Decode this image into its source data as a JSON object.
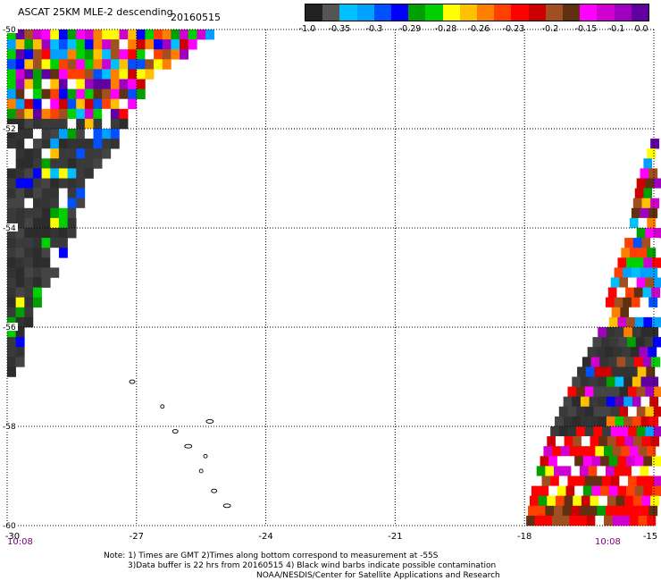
{
  "title": {
    "text": "ASCAT 25KM MLE-2 descending",
    "date": "20160515"
  },
  "colorbar": {
    "colors": [
      "#222222",
      "#555555",
      "#00bfff",
      "#00a0ff",
      "#0050ff",
      "#0000ff",
      "#00a000",
      "#00d000",
      "#ffff00",
      "#ffc000",
      "#ff8000",
      "#ff4000",
      "#ff0000",
      "#cc0000",
      "#a05020",
      "#603010",
      "#ff00ff",
      "#d000d0",
      "#a000c0",
      "#6000a0"
    ],
    "labels": [
      "-1.0",
      "-0.35",
      "-0.3",
      "-0.29",
      "-0.28",
      "-0.26",
      "-0.23",
      "-0.2",
      "-0.15",
      "-0.1",
      "0.0"
    ]
  },
  "map": {
    "lat_labels": [
      "-50",
      "-52",
      "-54",
      "-56",
      "-58",
      "-60"
    ],
    "lon_labels": [
      "-30",
      "-27",
      "-24",
      "-21",
      "-18",
      "-15"
    ],
    "time_left": "10:08",
    "time_right": "10:08"
  },
  "notes": {
    "line1": "Note: 1) Times are GMT 2)Times along bottom correspond to measurement at -55S",
    "line2": "3)Data buffer is 22 hrs from 20160515 4) Black wind barbs indicate possible contamination",
    "line3": "NOAA/NESDIS/Center for Satellite Applications and Research"
  },
  "swaths": {
    "cell_deg": 0.2,
    "lon_range": [
      -30,
      -15
    ],
    "lat_range": [
      -60,
      -50
    ],
    "left_edge": [
      [
        -50.0,
        -25.4
      ],
      [
        -51.0,
        -26.9
      ],
      [
        -52.0,
        -27.4
      ],
      [
        -53.0,
        -28.2
      ],
      [
        -54.0,
        -28.5
      ],
      [
        -55.0,
        -29.1
      ],
      [
        -56.0,
        -29.6
      ],
      [
        -57.0,
        -29.9
      ]
    ],
    "right_edge": [
      [
        -52.0,
        -15.0
      ],
      [
        -53.0,
        -15.4
      ],
      [
        -54.0,
        -15.6
      ],
      [
        -55.0,
        -16.0
      ],
      [
        -56.0,
        -16.3
      ],
      [
        -57.0,
        -16.9
      ],
      [
        -58.0,
        -17.4
      ],
      [
        -59.0,
        -17.8
      ],
      [
        -60.0,
        -18.0
      ]
    ],
    "left_gray_from_lat": -51.8,
    "right_red_from_lat": -58.2
  }
}
